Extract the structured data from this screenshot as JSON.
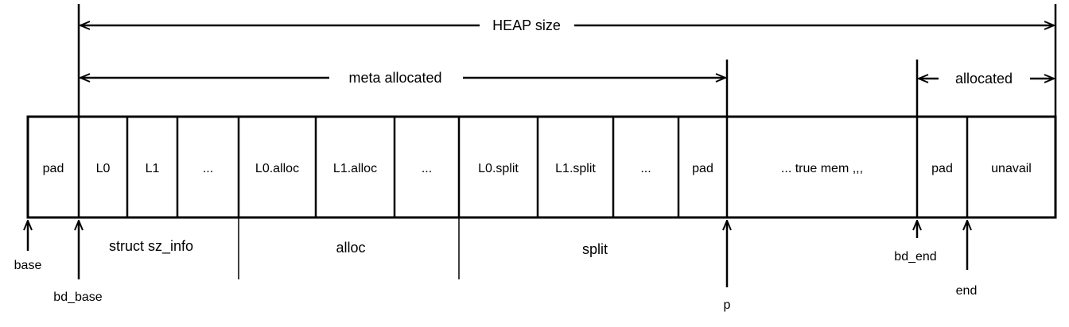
{
  "top_arrows": {
    "heap_size": "HEAP size",
    "meta_allocated": "meta allocated",
    "allocated": "allocated"
  },
  "cells": [
    "pad",
    "L0",
    "L1",
    "...",
    "L0.alloc",
    "L1.alloc",
    "...",
    "L0.split",
    "L1.split",
    "...",
    "pad",
    "... true mem ,,,",
    "pad",
    "unavail"
  ],
  "groups": {
    "struct_sz_info": "struct sz_info",
    "alloc": "alloc",
    "split": "split"
  },
  "pointers": {
    "base": "base",
    "bd_base": "bd_base",
    "p": "p",
    "bd_end": "bd_end",
    "end": "end"
  },
  "colors": {
    "stroke": "#000000",
    "background": "#ffffff"
  }
}
